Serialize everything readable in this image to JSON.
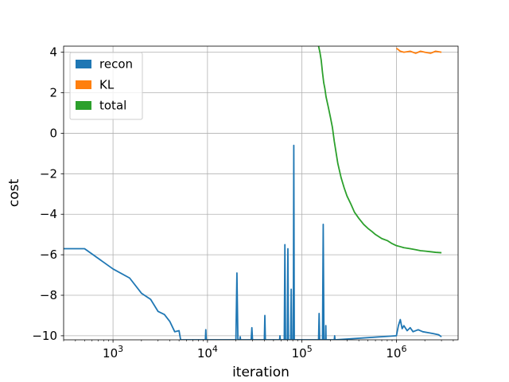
{
  "chart_data": {
    "type": "line",
    "title": "",
    "xlabel": "iteration",
    "ylabel": "cost",
    "xscale": "log",
    "xlim": [
      300,
      4500000
    ],
    "ylim": [
      -10.2,
      4.3
    ],
    "xticks": [
      1000,
      10000,
      100000,
      1000000
    ],
    "xtick_labels": [
      {
        "base": "10",
        "exp": "3"
      },
      {
        "base": "10",
        "exp": "4"
      },
      {
        "base": "10",
        "exp": "5"
      },
      {
        "base": "10",
        "exp": "6"
      }
    ],
    "yticks": [
      4,
      2,
      0,
      -2,
      -4,
      -6,
      -8,
      -10
    ],
    "ytick_labels": [
      "4",
      "2",
      "0",
      "−2",
      "−4",
      "−6",
      "−8",
      "−10"
    ],
    "grid": true,
    "legend": "upper-left",
    "series": [
      {
        "name": "recon",
        "color": "#1f77b4",
        "x": [
          300,
          500,
          1000,
          1500,
          2000,
          2500,
          3000,
          3500,
          4000,
          4500,
          5000,
          5200,
          9500,
          9600,
          9700,
          20000,
          20500,
          21000,
          22000,
          22200,
          22400,
          29000,
          29500,
          30000,
          40000,
          40500,
          41000,
          58000,
          58500,
          59000,
          65000,
          66000,
          67000,
          70000,
          71000,
          72000,
          76000,
          77000,
          78000,
          81000,
          82000,
          83000,
          150000,
          152000,
          154000,
          165000,
          168000,
          171000,
          178000,
          179000,
          180000,
          220000,
          222000,
          224000,
          1000000,
          1050000,
          1100000,
          1150000,
          1200000,
          1300000,
          1400000,
          1500000,
          1700000,
          1900000,
          2200000,
          2500000,
          2800000,
          3000000
        ],
        "y": [
          -5.7,
          -5.7,
          -6.7,
          -7.15,
          -7.9,
          -8.2,
          -8.8,
          -8.95,
          -9.3,
          -9.8,
          -9.75,
          -10.2,
          -10.2,
          -9.7,
          -10.2,
          -10.2,
          -6.9,
          -10.2,
          -10.2,
          -10.05,
          -10.2,
          -10.2,
          -9.6,
          -10.2,
          -10.2,
          -9.0,
          -10.2,
          -10.2,
          -10.0,
          -10.2,
          -10.2,
          -5.5,
          -10.2,
          -10.2,
          -5.7,
          -10.2,
          -10.2,
          -7.7,
          -10.2,
          -10.2,
          -0.6,
          -10.2,
          -10.2,
          -8.9,
          -10.2,
          -10.2,
          -4.5,
          -10.2,
          -10.2,
          -9.5,
          -10.2,
          -10.2,
          -10.0,
          -10.2,
          -10.0,
          -9.5,
          -9.2,
          -9.65,
          -9.5,
          -9.75,
          -9.6,
          -9.8,
          -9.7,
          -9.8,
          -9.85,
          -9.9,
          -9.95,
          -10.05
        ]
      },
      {
        "name": "KL",
        "color": "#ff7f0e",
        "x": [
          1000000,
          1100000,
          1200000,
          1400000,
          1600000,
          1800000,
          2000000,
          2300000,
          2600000,
          3000000
        ],
        "y": [
          4.2,
          4.05,
          4.0,
          4.05,
          3.95,
          4.05,
          4.0,
          3.95,
          4.05,
          4.0
        ]
      },
      {
        "name": "total",
        "color": "#2ca02c",
        "x": [
          150000,
          155000,
          160000,
          165000,
          170000,
          175000,
          180000,
          190000,
          200000,
          210000,
          220000,
          240000,
          260000,
          280000,
          300000,
          330000,
          360000,
          400000,
          450000,
          500000,
          550000,
          600000,
          700000,
          800000,
          900000,
          1000000,
          1100000,
          1200000,
          1400000,
          1600000,
          1800000,
          2000000,
          2300000,
          2600000,
          3000000
        ],
        "y": [
          4.3,
          4.0,
          3.6,
          3.0,
          2.5,
          2.2,
          1.8,
          1.3,
          0.8,
          0.3,
          -0.4,
          -1.5,
          -2.2,
          -2.7,
          -3.1,
          -3.5,
          -3.9,
          -4.2,
          -4.5,
          -4.7,
          -4.85,
          -5.0,
          -5.2,
          -5.3,
          -5.45,
          -5.55,
          -5.6,
          -5.65,
          -5.7,
          -5.75,
          -5.8,
          -5.82,
          -5.85,
          -5.88,
          -5.9
        ]
      }
    ]
  }
}
